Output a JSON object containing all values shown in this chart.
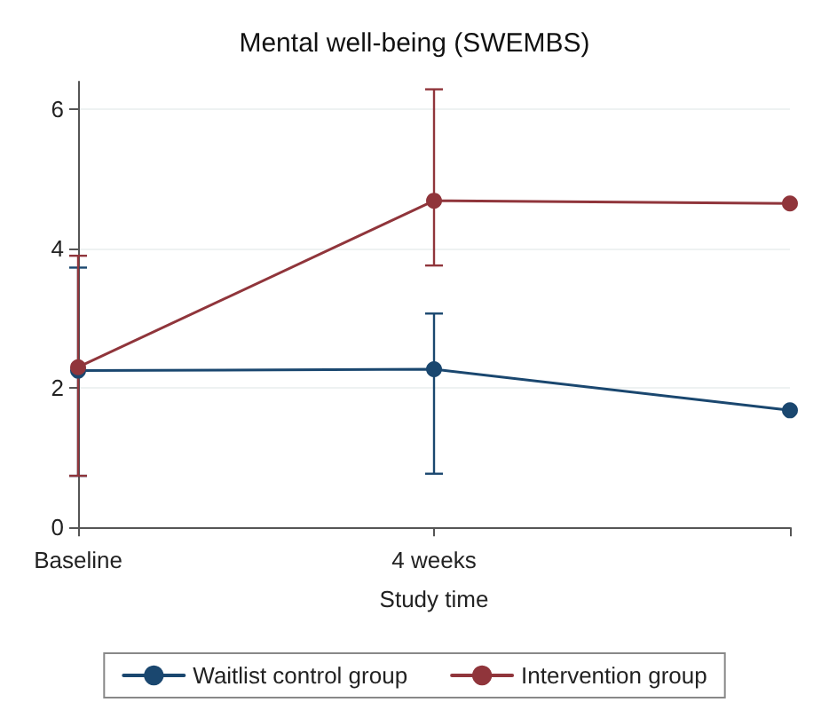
{
  "chart_data": {
    "type": "line",
    "title": "Mental well-being (SWEMBS)",
    "xlabel": "Study time",
    "categories": [
      "Baseline",
      "4 weeks",
      null
    ],
    "series": [
      {
        "name": "Waitlist control group",
        "color": "#1a476f",
        "values": [
          2.25,
          2.27,
          1.68
        ],
        "errors": [
          [
            0.74,
            3.73
          ],
          [
            0.77,
            3.07
          ],
          null
        ]
      },
      {
        "name": "Intervention group",
        "color": "#90353b",
        "values": [
          2.3,
          4.69,
          4.65
        ],
        "errors": [
          [
            0.74,
            3.9
          ],
          [
            3.76,
            6.29
          ],
          null
        ]
      }
    ],
    "ylim": [
      -0.1,
      6.4
    ],
    "yticks": [
      0,
      2,
      4,
      6
    ],
    "grid": "y",
    "legend": "bottom",
    "marker": "circle",
    "line_style": "solid"
  }
}
